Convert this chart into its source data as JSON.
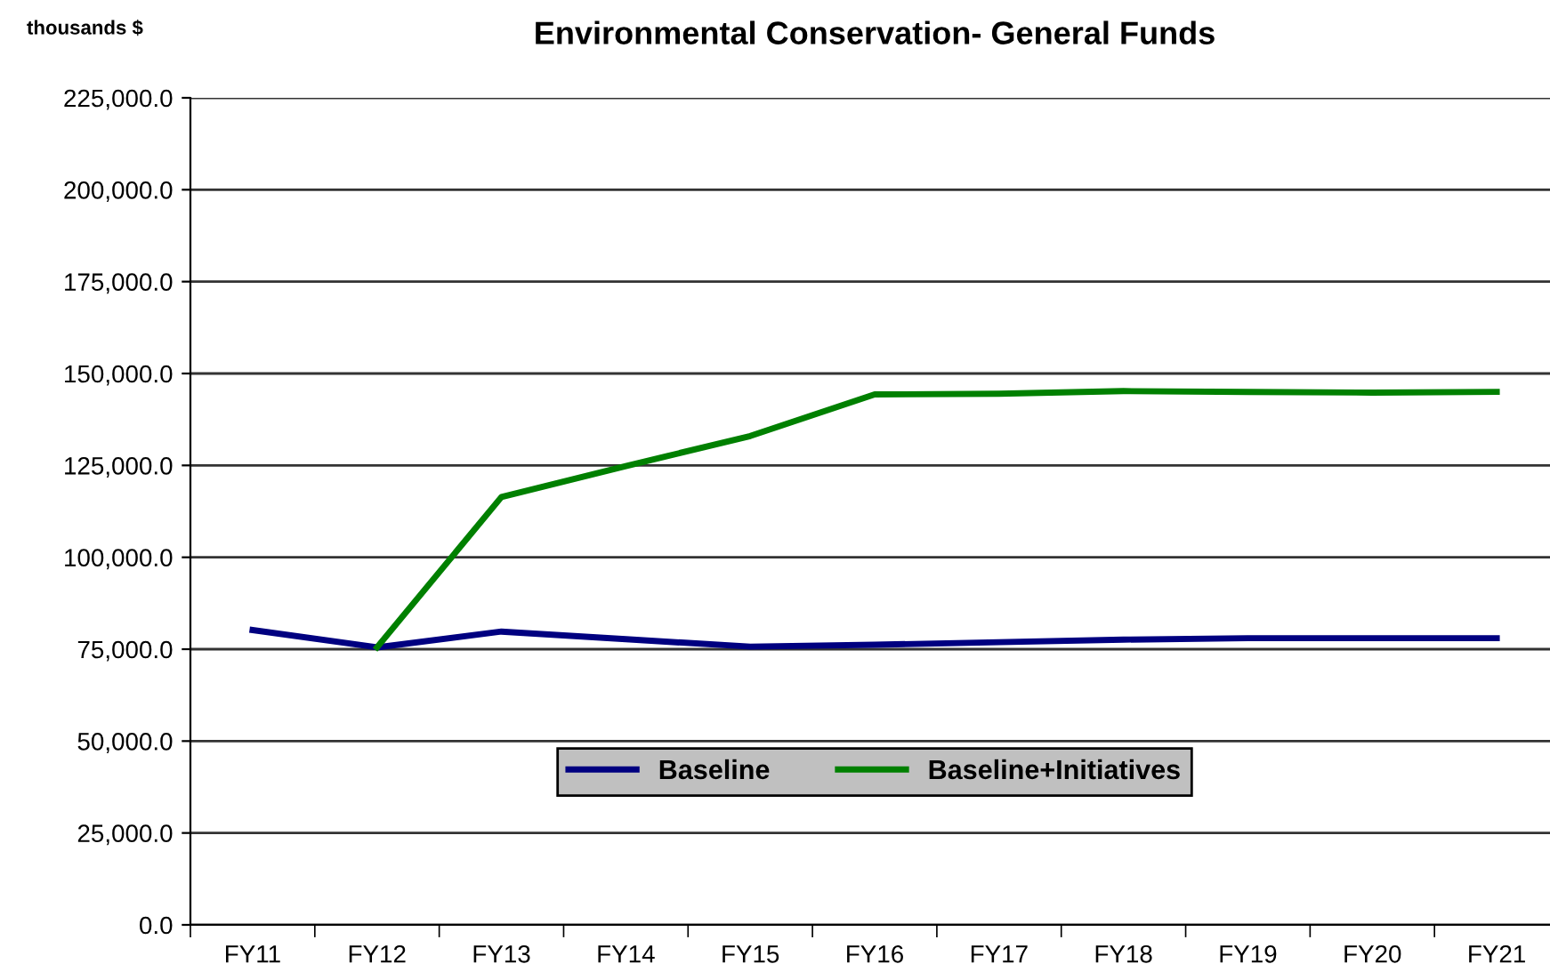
{
  "chart_data": {
    "type": "line",
    "title": "Environmental Conservation- General Funds",
    "ylabel": "thousands $",
    "categories": [
      "FY11",
      "FY12",
      "FY13",
      "FY14",
      "FY15",
      "FY16",
      "FY17",
      "FY18",
      "FY19",
      "FY20",
      "FY21"
    ],
    "series": [
      {
        "name": "Baseline",
        "color": "#000080",
        "values": [
          80200,
          75500,
          79800,
          77700,
          75700,
          76200,
          76900,
          77600,
          78000,
          78000,
          78000
        ]
      },
      {
        "name": "Baseline+Initiatives",
        "color": "#008000",
        "values": [
          null,
          75500,
          116400,
          124800,
          133000,
          144300,
          144500,
          145200,
          145000,
          144800,
          145000
        ]
      }
    ],
    "ylim": [
      0,
      225000
    ],
    "yticks": [
      {
        "value": 0,
        "label": "0.0"
      },
      {
        "value": 25000,
        "label": "25,000.0"
      },
      {
        "value": 50000,
        "label": "50,000.0"
      },
      {
        "value": 75000,
        "label": "75,000.0"
      },
      {
        "value": 100000,
        "label": "100,000.0"
      },
      {
        "value": 125000,
        "label": "125,000.0"
      },
      {
        "value": 150000,
        "label": "150,000.0"
      },
      {
        "value": 175000,
        "label": "175,000.0"
      },
      {
        "value": 200000,
        "label": "200,000.0"
      },
      {
        "value": 225000,
        "label": "225,000.0"
      }
    ],
    "grid": "y",
    "legend": "bottom",
    "marker": "none",
    "line_style": "solid"
  }
}
